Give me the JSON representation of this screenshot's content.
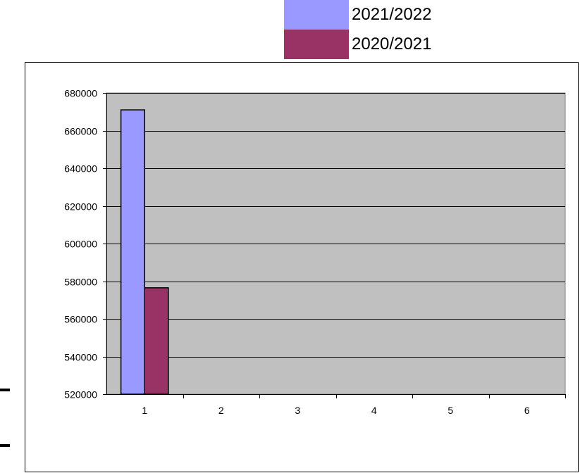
{
  "legend": {
    "items": [
      {
        "label": "2021/2022",
        "color": "#9999ff"
      },
      {
        "label": "2020/2021",
        "color": "#993366"
      }
    ]
  },
  "chart_data": {
    "type": "bar",
    "categories": [
      "1",
      "2",
      "3",
      "4",
      "5",
      "6"
    ],
    "series": [
      {
        "name": "2021/2022",
        "color": "#9999ff",
        "values": [
          671000,
          null,
          null,
          null,
          null,
          null
        ]
      },
      {
        "name": "2020/2021",
        "color": "#993366",
        "values": [
          576500,
          null,
          null,
          null,
          null,
          null
        ]
      }
    ],
    "ylim": [
      520000,
      680000
    ],
    "yticks": [
      "520000",
      "540000",
      "560000",
      "580000",
      "600000",
      "620000",
      "640000",
      "660000",
      "680000"
    ],
    "plot_background": "#c0c0c0",
    "grid": true,
    "legend_position": "top-right"
  }
}
